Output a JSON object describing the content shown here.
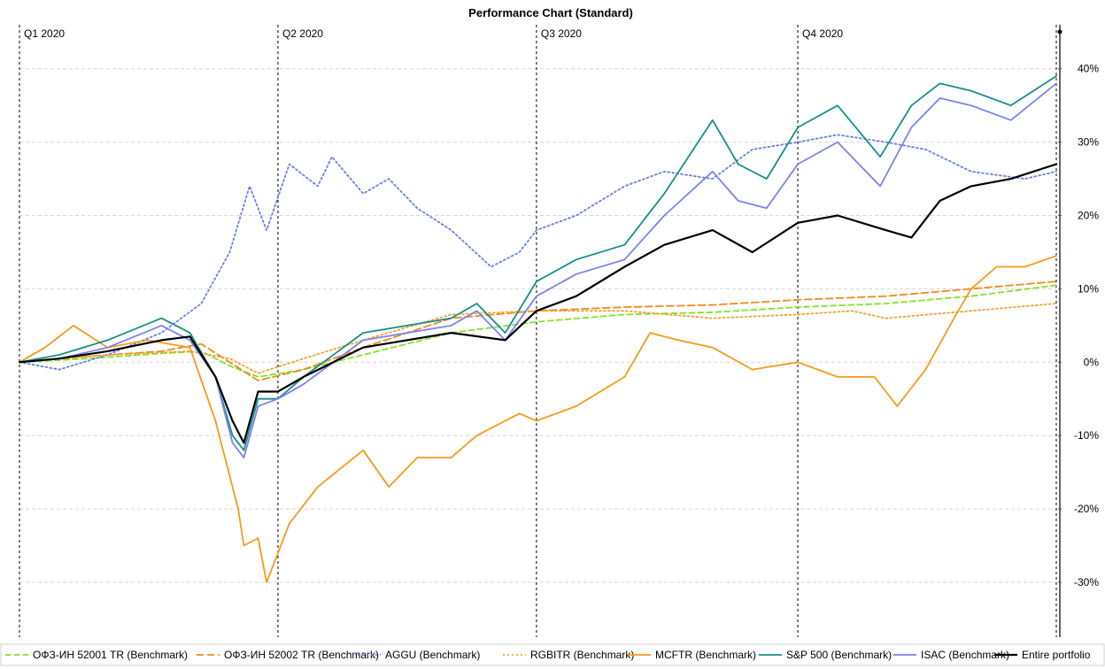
{
  "chart_data": {
    "type": "line",
    "title": "Performance Chart (Standard)",
    "xlabel": "",
    "ylabel": "",
    "x_range": [
      "2020-01-01",
      "2020-12-31"
    ],
    "ylim": [
      -0.37,
      0.46
    ],
    "y_ticks": [
      {
        "value": 0.4,
        "label": "40%"
      },
      {
        "value": 0.3,
        "label": "30%"
      },
      {
        "value": 0.2,
        "label": "20%"
      },
      {
        "value": 0.1,
        "label": "10%"
      },
      {
        "value": 0.0,
        "label": "0%"
      },
      {
        "value": -0.1,
        "label": "-10%"
      },
      {
        "value": -0.2,
        "label": "-20%"
      },
      {
        "value": -0.3,
        "label": "-30%"
      }
    ],
    "y_axis_side": "right",
    "grid": "horizontal dashed",
    "quarter_markers": [
      {
        "date": "2020-01-01",
        "label": "Q1 2020"
      },
      {
        "date": "2020-04-01",
        "label": "Q2 2020"
      },
      {
        "date": "2020-07-01",
        "label": "Q3 2020"
      },
      {
        "date": "2020-10-01",
        "label": "Q4 2020"
      }
    ],
    "end_marker_date": "2020-12-31",
    "legend_position": "bottom",
    "series": [
      {
        "name": "ОФЗ-ИН 52001 TR (Benchmark)",
        "color": "#7ee52a",
        "dash": "dashed",
        "points": [
          [
            "2020-01-01",
            0.0
          ],
          [
            "2020-01-25",
            0.005
          ],
          [
            "2020-02-20",
            0.012
          ],
          [
            "2020-03-05",
            0.015
          ],
          [
            "2020-03-15",
            -0.005
          ],
          [
            "2020-03-25",
            -0.02
          ],
          [
            "2020-04-10",
            -0.01
          ],
          [
            "2020-05-01",
            0.01
          ],
          [
            "2020-06-01",
            0.04
          ],
          [
            "2020-07-01",
            0.055
          ],
          [
            "2020-08-01",
            0.065
          ],
          [
            "2020-09-01",
            0.068
          ],
          [
            "2020-10-01",
            0.075
          ],
          [
            "2020-11-01",
            0.08
          ],
          [
            "2020-12-01",
            0.09
          ],
          [
            "2020-12-31",
            0.105
          ]
        ]
      },
      {
        "name": "ОФЗ-ИН 52002 TR (Benchmark)",
        "color": "#f08a1e",
        "dash": "longdash",
        "points": [
          [
            "2020-01-01",
            0.0
          ],
          [
            "2020-01-25",
            0.008
          ],
          [
            "2020-02-20",
            0.015
          ],
          [
            "2020-03-05",
            0.025
          ],
          [
            "2020-03-15",
            0.0
          ],
          [
            "2020-03-25",
            -0.025
          ],
          [
            "2020-04-10",
            -0.01
          ],
          [
            "2020-05-01",
            0.02
          ],
          [
            "2020-06-01",
            0.06
          ],
          [
            "2020-07-01",
            0.07
          ],
          [
            "2020-08-01",
            0.075
          ],
          [
            "2020-09-01",
            0.078
          ],
          [
            "2020-10-01",
            0.085
          ],
          [
            "2020-11-01",
            0.09
          ],
          [
            "2020-12-01",
            0.1
          ],
          [
            "2020-12-31",
            0.11
          ]
        ]
      },
      {
        "name": "AGGU (Benchmark)",
        "color": "#6b7fe6",
        "dash": "dotted",
        "points": [
          [
            "2020-01-01",
            0.0
          ],
          [
            "2020-01-15",
            -0.01
          ],
          [
            "2020-02-01",
            0.01
          ],
          [
            "2020-02-20",
            0.04
          ],
          [
            "2020-03-05",
            0.08
          ],
          [
            "2020-03-15",
            0.15
          ],
          [
            "2020-03-22",
            0.24
          ],
          [
            "2020-03-28",
            0.18
          ],
          [
            "2020-04-05",
            0.27
          ],
          [
            "2020-04-15",
            0.24
          ],
          [
            "2020-04-20",
            0.28
          ],
          [
            "2020-05-01",
            0.23
          ],
          [
            "2020-05-10",
            0.25
          ],
          [
            "2020-05-20",
            0.21
          ],
          [
            "2020-06-01",
            0.18
          ],
          [
            "2020-06-15",
            0.13
          ],
          [
            "2020-06-25",
            0.15
          ],
          [
            "2020-07-01",
            0.18
          ],
          [
            "2020-07-15",
            0.2
          ],
          [
            "2020-08-01",
            0.24
          ],
          [
            "2020-08-15",
            0.26
          ],
          [
            "2020-09-01",
            0.25
          ],
          [
            "2020-09-15",
            0.29
          ],
          [
            "2020-10-01",
            0.3
          ],
          [
            "2020-10-15",
            0.31
          ],
          [
            "2020-11-01",
            0.3
          ],
          [
            "2020-11-15",
            0.29
          ],
          [
            "2020-12-01",
            0.26
          ],
          [
            "2020-12-20",
            0.25
          ],
          [
            "2020-12-31",
            0.26
          ]
        ]
      },
      {
        "name": "RGBITR (Benchmark)",
        "color": "#f4a32c",
        "dash": "dotted",
        "points": [
          [
            "2020-01-01",
            0.0
          ],
          [
            "2020-02-01",
            0.01
          ],
          [
            "2020-03-01",
            0.015
          ],
          [
            "2020-03-15",
            0.005
          ],
          [
            "2020-03-25",
            -0.015
          ],
          [
            "2020-04-10",
            0.005
          ],
          [
            "2020-05-01",
            0.03
          ],
          [
            "2020-06-01",
            0.065
          ],
          [
            "2020-07-01",
            0.07
          ],
          [
            "2020-08-01",
            0.07
          ],
          [
            "2020-09-01",
            0.06
          ],
          [
            "2020-10-01",
            0.065
          ],
          [
            "2020-10-20",
            0.07
          ],
          [
            "2020-11-01",
            0.06
          ],
          [
            "2020-12-01",
            0.07
          ],
          [
            "2020-12-31",
            0.08
          ]
        ]
      },
      {
        "name": "MCFTR (Benchmark)",
        "color": "#f59a1b",
        "dash": "solid",
        "points": [
          [
            "2020-01-01",
            0.0
          ],
          [
            "2020-01-10",
            0.02
          ],
          [
            "2020-01-20",
            0.05
          ],
          [
            "2020-02-01",
            0.02
          ],
          [
            "2020-02-15",
            0.03
          ],
          [
            "2020-03-01",
            0.02
          ],
          [
            "2020-03-10",
            -0.08
          ],
          [
            "2020-03-18",
            -0.2
          ],
          [
            "2020-03-20",
            -0.25
          ],
          [
            "2020-03-25",
            -0.24
          ],
          [
            "2020-03-28",
            -0.3
          ],
          [
            "2020-04-05",
            -0.22
          ],
          [
            "2020-04-15",
            -0.17
          ],
          [
            "2020-05-01",
            -0.12
          ],
          [
            "2020-05-10",
            -0.17
          ],
          [
            "2020-05-20",
            -0.13
          ],
          [
            "2020-06-01",
            -0.13
          ],
          [
            "2020-06-10",
            -0.1
          ],
          [
            "2020-06-25",
            -0.07
          ],
          [
            "2020-07-01",
            -0.08
          ],
          [
            "2020-07-15",
            -0.06
          ],
          [
            "2020-08-01",
            -0.02
          ],
          [
            "2020-08-10",
            0.04
          ],
          [
            "2020-08-20",
            0.03
          ],
          [
            "2020-09-01",
            0.02
          ],
          [
            "2020-09-15",
            -0.01
          ],
          [
            "2020-10-01",
            0.0
          ],
          [
            "2020-10-15",
            -0.02
          ],
          [
            "2020-10-28",
            -0.02
          ],
          [
            "2020-11-05",
            -0.06
          ],
          [
            "2020-11-15",
            -0.01
          ],
          [
            "2020-11-25",
            0.06
          ],
          [
            "2020-12-01",
            0.1
          ],
          [
            "2020-12-10",
            0.13
          ],
          [
            "2020-12-20",
            0.13
          ],
          [
            "2020-12-31",
            0.145
          ]
        ]
      },
      {
        "name": "S&P 500 (Benchmark)",
        "color": "#168f8a",
        "dash": "solid",
        "points": [
          [
            "2020-01-01",
            0.0
          ],
          [
            "2020-01-15",
            0.01
          ],
          [
            "2020-02-01",
            0.03
          ],
          [
            "2020-02-20",
            0.06
          ],
          [
            "2020-03-01",
            0.04
          ],
          [
            "2020-03-10",
            -0.02
          ],
          [
            "2020-03-16",
            -0.1
          ],
          [
            "2020-03-20",
            -0.12
          ],
          [
            "2020-03-25",
            -0.05
          ],
          [
            "2020-04-01",
            -0.05
          ],
          [
            "2020-04-10",
            -0.02
          ],
          [
            "2020-05-01",
            0.04
          ],
          [
            "2020-06-01",
            0.06
          ],
          [
            "2020-06-10",
            0.08
          ],
          [
            "2020-06-20",
            0.04
          ],
          [
            "2020-07-01",
            0.11
          ],
          [
            "2020-07-15",
            0.14
          ],
          [
            "2020-08-01",
            0.16
          ],
          [
            "2020-08-15",
            0.23
          ],
          [
            "2020-09-01",
            0.33
          ],
          [
            "2020-09-10",
            0.27
          ],
          [
            "2020-09-20",
            0.25
          ],
          [
            "2020-10-01",
            0.32
          ],
          [
            "2020-10-15",
            0.35
          ],
          [
            "2020-10-30",
            0.28
          ],
          [
            "2020-11-10",
            0.35
          ],
          [
            "2020-11-20",
            0.38
          ],
          [
            "2020-12-01",
            0.37
          ],
          [
            "2020-12-15",
            0.35
          ],
          [
            "2020-12-31",
            0.39
          ]
        ]
      },
      {
        "name": "ISAC (Benchmark)",
        "color": "#7b82ee",
        "dash": "solid",
        "points": [
          [
            "2020-01-01",
            0.0
          ],
          [
            "2020-01-15",
            0.005
          ],
          [
            "2020-02-01",
            0.02
          ],
          [
            "2020-02-20",
            0.05
          ],
          [
            "2020-03-01",
            0.03
          ],
          [
            "2020-03-10",
            -0.02
          ],
          [
            "2020-03-16",
            -0.11
          ],
          [
            "2020-03-20",
            -0.13
          ],
          [
            "2020-03-25",
            -0.06
          ],
          [
            "2020-04-01",
            -0.05
          ],
          [
            "2020-04-10",
            -0.03
          ],
          [
            "2020-05-01",
            0.03
          ],
          [
            "2020-06-01",
            0.05
          ],
          [
            "2020-06-10",
            0.07
          ],
          [
            "2020-06-20",
            0.03
          ],
          [
            "2020-07-01",
            0.09
          ],
          [
            "2020-07-15",
            0.12
          ],
          [
            "2020-08-01",
            0.14
          ],
          [
            "2020-08-15",
            0.2
          ],
          [
            "2020-09-01",
            0.26
          ],
          [
            "2020-09-10",
            0.22
          ],
          [
            "2020-09-20",
            0.21
          ],
          [
            "2020-10-01",
            0.27
          ],
          [
            "2020-10-15",
            0.3
          ],
          [
            "2020-10-30",
            0.24
          ],
          [
            "2020-11-10",
            0.32
          ],
          [
            "2020-11-20",
            0.36
          ],
          [
            "2020-12-01",
            0.35
          ],
          [
            "2020-12-15",
            0.33
          ],
          [
            "2020-12-31",
            0.38
          ]
        ]
      },
      {
        "name": "Entire portfolio",
        "color": "#000000",
        "dash": "solid",
        "points": [
          [
            "2020-01-01",
            0.0
          ],
          [
            "2020-01-15",
            0.005
          ],
          [
            "2020-02-01",
            0.015
          ],
          [
            "2020-02-20",
            0.03
          ],
          [
            "2020-03-01",
            0.035
          ],
          [
            "2020-03-10",
            -0.02
          ],
          [
            "2020-03-16",
            -0.08
          ],
          [
            "2020-03-20",
            -0.11
          ],
          [
            "2020-03-25",
            -0.04
          ],
          [
            "2020-04-01",
            -0.04
          ],
          [
            "2020-04-10",
            -0.02
          ],
          [
            "2020-05-01",
            0.02
          ],
          [
            "2020-06-01",
            0.04
          ],
          [
            "2020-06-20",
            0.03
          ],
          [
            "2020-07-01",
            0.07
          ],
          [
            "2020-07-15",
            0.09
          ],
          [
            "2020-08-01",
            0.13
          ],
          [
            "2020-08-15",
            0.16
          ],
          [
            "2020-09-01",
            0.18
          ],
          [
            "2020-09-15",
            0.15
          ],
          [
            "2020-10-01",
            0.19
          ],
          [
            "2020-10-15",
            0.2
          ],
          [
            "2020-11-01",
            0.18
          ],
          [
            "2020-11-10",
            0.17
          ],
          [
            "2020-11-20",
            0.22
          ],
          [
            "2020-12-01",
            0.24
          ],
          [
            "2020-12-15",
            0.25
          ],
          [
            "2020-12-31",
            0.27
          ]
        ]
      }
    ]
  }
}
